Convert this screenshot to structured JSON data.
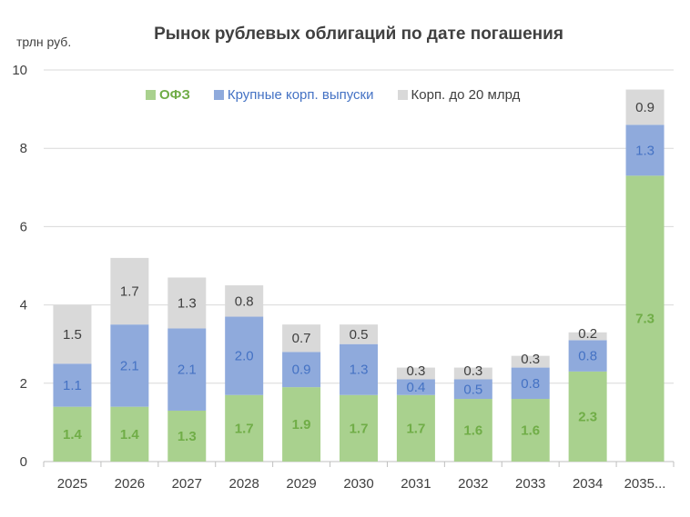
{
  "chart_data": {
    "type": "bar",
    "stacked": true,
    "title": "Рынок рублевых облигаций по дате погашения",
    "ylabel": "трлн руб.",
    "xlabel": "",
    "ylim": [
      0,
      10
    ],
    "yticks": [
      0,
      2,
      4,
      6,
      8,
      10
    ],
    "grid": true,
    "legend_position": "top",
    "categories": [
      "2025",
      "2026",
      "2027",
      "2028",
      "2029",
      "2030",
      "2031",
      "2032",
      "2033",
      "2034",
      "2035..."
    ],
    "series": [
      {
        "name": "ОФЗ",
        "color": "#a9d18e",
        "label_color": "#70ad47",
        "values": [
          1.4,
          1.4,
          1.3,
          1.7,
          1.9,
          1.7,
          1.7,
          1.6,
          1.6,
          2.3,
          7.3
        ]
      },
      {
        "name": "Крупные корп. выпуски",
        "color": "#8faadc",
        "label_color": "#4472c4",
        "values": [
          1.1,
          2.1,
          2.1,
          2.0,
          0.9,
          1.3,
          0.4,
          0.5,
          0.8,
          0.8,
          1.3
        ]
      },
      {
        "name": "Корп. до 20 млрд",
        "color": "#d9d9d9",
        "label_color": "#404040",
        "values": [
          1.5,
          1.7,
          1.3,
          0.8,
          0.7,
          0.5,
          0.3,
          0.3,
          0.3,
          0.2,
          0.9
        ]
      }
    ]
  }
}
